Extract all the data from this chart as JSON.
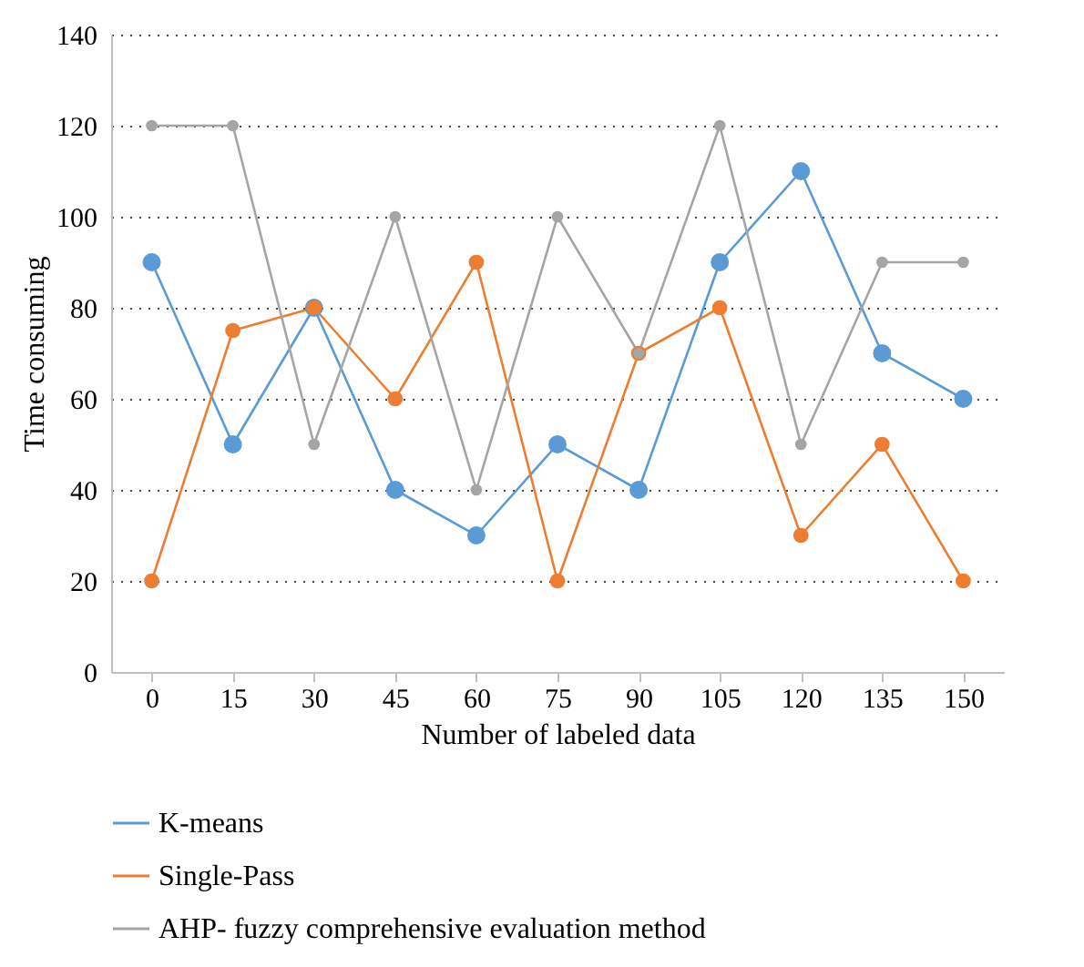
{
  "chart_data": {
    "type": "line",
    "xlabel": "Number of labeled data",
    "ylabel": "Time consuming",
    "categories": [
      "0",
      "15",
      "30",
      "45",
      "60",
      "75",
      "90",
      "105",
      "120",
      "135",
      "150"
    ],
    "series": [
      {
        "name": "K-means",
        "color": "#5b9bd5",
        "values": [
          90,
          50,
          80,
          40,
          30,
          50,
          40,
          90,
          110,
          70,
          60
        ]
      },
      {
        "name": "Single-Pass",
        "color": "#ed7d31",
        "values": [
          20,
          75,
          80,
          60,
          90,
          20,
          70,
          80,
          30,
          50,
          20
        ]
      },
      {
        "name": "AHP- fuzzy comprehensive evaluation method",
        "color": "#a5a5a5",
        "values": [
          120,
          120,
          50,
          100,
          40,
          100,
          70,
          120,
          50,
          90,
          90
        ]
      }
    ],
    "ylim": [
      0,
      140
    ],
    "yticks": [
      0,
      20,
      40,
      60,
      80,
      100,
      120,
      140
    ],
    "grid": "y",
    "legend": "bottom",
    "marker": "circle",
    "line_style": "solid"
  }
}
